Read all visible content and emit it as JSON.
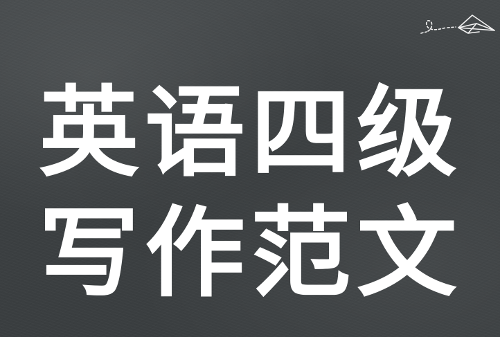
{
  "title": {
    "line1": [
      "英",
      "语",
      "四",
      "级"
    ],
    "line2": [
      "写",
      "作",
      "范",
      "文"
    ]
  },
  "decoration": {
    "icon": "paper-plane-icon",
    "background": "chalkboard",
    "text_color": "#ffffff",
    "board_color": "#3f4345"
  }
}
